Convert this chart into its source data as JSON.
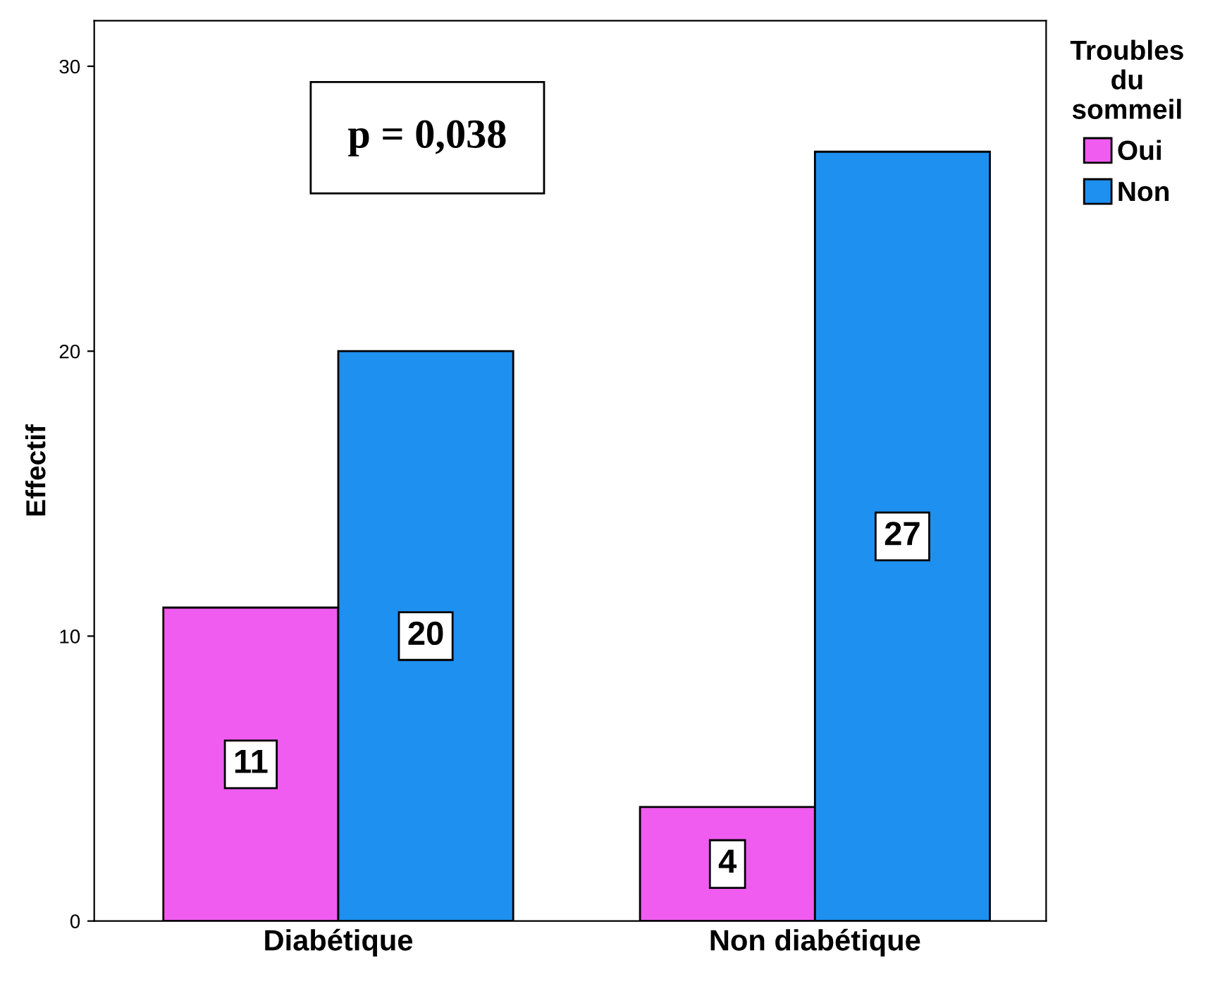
{
  "chart_data": {
    "type": "bar",
    "ylabel": "Effectif",
    "categories": [
      "Diabétique",
      "Non diabétique"
    ],
    "series": [
      {
        "name": "Oui",
        "color": "#f05cf0",
        "values": [
          11,
          4
        ]
      },
      {
        "name": "Non",
        "color": "#1e90f0",
        "values": [
          20,
          27
        ]
      }
    ],
    "ylim": [
      0,
      31.6
    ],
    "yticks": [
      0,
      10,
      20,
      30
    ],
    "grid": false,
    "legend": "right",
    "legend_title": "Troubles\ndu\nsommeil",
    "data_labels": true,
    "annotations": [
      "p = 0,038"
    ]
  }
}
